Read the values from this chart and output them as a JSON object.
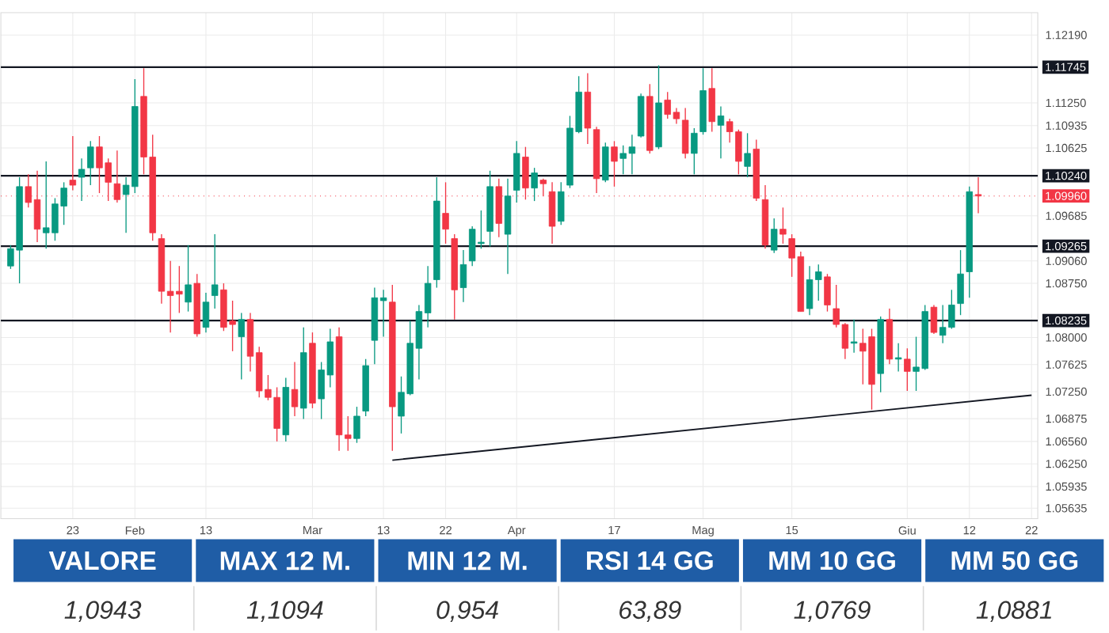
{
  "chart_data": [
    {
      "type": "candlestick",
      "categories": [
        null,
        null,
        null,
        null,
        null,
        null,
        null,
        "23",
        null,
        null,
        null,
        null,
        null,
        null,
        "Feb",
        null,
        null,
        null,
        null,
        null,
        null,
        null,
        "13",
        null,
        null,
        null,
        null,
        null,
        null,
        null,
        null,
        null,
        null,
        null,
        "Mar",
        null,
        null,
        null,
        null,
        null,
        null,
        null,
        "13",
        null,
        null,
        null,
        null,
        null,
        null,
        "22",
        null,
        null,
        null,
        null,
        null,
        null,
        null,
        "Apr",
        null,
        null,
        null,
        null,
        null,
        null,
        null,
        null,
        null,
        null,
        "17",
        null,
        null,
        null,
        null,
        null,
        null,
        null,
        null,
        null,
        "Mag",
        null,
        null,
        null,
        null,
        null,
        null,
        null,
        null,
        null,
        "15",
        null,
        null,
        null,
        null,
        null,
        null,
        null,
        null,
        null,
        null,
        null,
        null,
        "Giu",
        null,
        null,
        null,
        null,
        null,
        null,
        "12",
        null,
        null,
        null,
        null,
        null,
        null,
        "22"
      ],
      "ohlc": [
        [
          1.0899,
          1.0928,
          1.0895,
          1.0923
        ],
        [
          1.0921,
          1.1022,
          1.0875,
          1.1009
        ],
        [
          1.1009,
          1.1026,
          1.098,
          1.0987
        ],
        [
          1.0991,
          1.1031,
          1.0932,
          1.095
        ],
        [
          1.0945,
          1.1044,
          1.0923,
          1.0952
        ],
        [
          1.0945,
          1.0993,
          1.0934,
          1.0985
        ],
        [
          1.0982,
          1.1015,
          1.0956,
          1.1007
        ],
        [
          1.1018,
          1.1079,
          1.1004,
          1.1011
        ],
        [
          1.1022,
          1.1048,
          1.0989,
          1.1033
        ],
        [
          1.1035,
          1.1072,
          1.1011,
          1.1064
        ],
        [
          1.1064,
          1.1079,
          1.1,
          1.1035
        ],
        [
          1.1042,
          1.1048,
          1.0989,
          1.1015
        ],
        [
          1.1013,
          1.1059,
          1.0987,
          1.0991
        ],
        [
          1.0998,
          1.1022,
          1.0945,
          1.1011
        ],
        [
          1.1009,
          1.1158,
          1.1,
          1.112
        ],
        [
          1.1134,
          1.1173,
          1.1026,
          1.105
        ],
        [
          1.105,
          1.1081,
          1.0934,
          1.0945
        ],
        [
          1.0937,
          1.0943,
          1.0847,
          1.0864
        ],
        [
          1.0864,
          1.0906,
          1.0807,
          1.0858
        ],
        [
          1.0864,
          1.0899,
          1.0834,
          1.086
        ],
        [
          1.0849,
          1.0928,
          1.0836,
          1.0873
        ],
        [
          1.0875,
          1.0888,
          1.0801,
          1.0805
        ],
        [
          1.0814,
          1.0862,
          1.0807,
          1.0849
        ],
        [
          1.0858,
          1.0943,
          1.084,
          1.0873
        ],
        [
          1.0866,
          1.0875,
          1.0809,
          1.0814
        ],
        [
          1.0823,
          1.0851,
          1.0781,
          1.0818
        ],
        [
          1.0801,
          1.0834,
          1.0742,
          1.0825
        ],
        [
          1.0825,
          1.0834,
          1.0753,
          1.0774
        ],
        [
          1.0779,
          1.0787,
          1.0717,
          1.0726
        ],
        [
          1.0728,
          1.0748,
          1.0713,
          1.0717
        ],
        [
          1.0717,
          1.0731,
          1.0656,
          1.0674
        ],
        [
          1.0665,
          1.0744,
          1.0656,
          1.0731
        ],
        [
          1.0728,
          1.0766,
          1.0691,
          1.0704
        ],
        [
          1.0702,
          1.0814,
          1.0687,
          1.0779
        ],
        [
          1.0792,
          1.0807,
          1.0702,
          1.0709
        ],
        [
          1.0715,
          1.0766,
          1.0687,
          1.0755
        ],
        [
          1.0748,
          1.0812,
          1.0731,
          1.0794
        ],
        [
          1.0801,
          1.0814,
          1.0643,
          1.0665
        ],
        [
          1.0665,
          1.0691,
          1.0643,
          1.066
        ],
        [
          1.066,
          1.0704,
          1.0654,
          1.0691
        ],
        [
          1.0698,
          1.077,
          1.0691,
          1.0761
        ],
        [
          1.0796,
          1.0869,
          1.0763,
          1.0855
        ],
        [
          1.0851,
          1.0866,
          1.0801,
          1.0855
        ],
        [
          1.0849,
          1.0873,
          1.0643,
          1.0704
        ],
        [
          1.0691,
          1.0746,
          1.0667,
          1.0724
        ],
        [
          1.0722,
          1.0823,
          1.072,
          1.0792
        ],
        [
          1.0785,
          1.0845,
          1.0742,
          1.0836
        ],
        [
          1.0834,
          1.0899,
          1.0814,
          1.0875
        ],
        [
          1.088,
          1.1022,
          1.0869,
          1.0989
        ],
        [
          1.0972,
          1.1015,
          1.093,
          1.095
        ],
        [
          1.0937,
          1.0943,
          1.0825,
          1.0866
        ],
        [
          1.0869,
          1.0921,
          1.0849,
          1.0901
        ],
        [
          1.0906,
          1.0954,
          1.0899,
          1.095
        ],
        [
          1.093,
          1.0976,
          1.0923,
          1.0932
        ],
        [
          1.0947,
          1.1031,
          1.0926,
          1.1009
        ],
        [
          1.1009,
          1.102,
          1.0939,
          1.0958
        ],
        [
          1.0943,
          1.102,
          1.0888,
          1.0996
        ],
        [
          1.1004,
          1.1072,
          1.0987,
          1.1055
        ],
        [
          1.105,
          1.1064,
          1.0991,
          1.1007
        ],
        [
          1.1007,
          1.1035,
          1.0989,
          1.1028
        ],
        [
          1.1018,
          1.102,
          1.0996,
          1.1013
        ],
        [
          1.1002,
          1.1015,
          1.093,
          1.0954
        ],
        [
          1.0961,
          1.1015,
          1.0956,
          1.1002
        ],
        [
          1.1011,
          1.1107,
          1.1007,
          1.109
        ],
        [
          1.1085,
          1.1162,
          1.1083,
          1.114
        ],
        [
          1.114,
          1.1166,
          1.1068,
          1.109
        ],
        [
          1.1088,
          1.1092,
          1.1,
          1.102
        ],
        [
          1.1018,
          1.107,
          1.1015,
          1.1064
        ],
        [
          1.1064,
          1.1072,
          1.1009,
          1.1044
        ],
        [
          1.1048,
          1.1066,
          1.1026,
          1.1055
        ],
        [
          1.1055,
          1.1081,
          1.1026,
          1.1064
        ],
        [
          1.1079,
          1.1138,
          1.1077,
          1.1134
        ],
        [
          1.1134,
          1.1151,
          1.1055,
          1.1059
        ],
        [
          1.1064,
          1.1177,
          1.1061,
          1.1125
        ],
        [
          1.1129,
          1.114,
          1.1103,
          1.1109
        ],
        [
          1.1112,
          1.1118,
          1.1096,
          1.1103
        ],
        [
          1.1101,
          1.1118,
          1.1048,
          1.1055
        ],
        [
          1.1055,
          1.109,
          1.1026,
          1.1083
        ],
        [
          1.1085,
          1.1173,
          1.1081,
          1.1142
        ],
        [
          1.1145,
          1.1173,
          1.1085,
          1.1099
        ],
        [
          1.1094,
          1.112,
          1.1048,
          1.1107
        ],
        [
          1.1099,
          1.1103,
          1.107,
          1.1085
        ],
        [
          1.1085,
          1.1088,
          1.1026,
          1.1044
        ],
        [
          1.1037,
          1.1083,
          1.1022,
          1.1055
        ],
        [
          1.1061,
          1.1074,
          1.0989,
          1.0993
        ],
        [
          1.0991,
          1.1011,
          1.0923,
          1.0928
        ],
        [
          1.0921,
          1.0965,
          1.0917,
          1.095
        ],
        [
          1.095,
          1.098,
          1.093,
          1.0943
        ],
        [
          1.0937,
          1.0943,
          1.0884,
          1.091
        ],
        [
          1.0912,
          1.0919,
          1.0836,
          1.0836
        ],
        [
          1.084,
          1.0899,
          1.0831,
          1.088
        ],
        [
          1.088,
          1.0901,
          1.0851,
          1.0891
        ],
        [
          1.0884,
          1.0888,
          1.0836,
          1.0845
        ],
        [
          1.084,
          1.0873,
          1.0814,
          1.0818
        ],
        [
          1.0818,
          1.082,
          1.077,
          1.0785
        ],
        [
          1.0792,
          1.0825,
          1.0779,
          1.0794
        ],
        [
          1.0792,
          1.0812,
          1.0735,
          1.0781
        ],
        [
          1.0801,
          1.0812,
          1.07,
          1.0735
        ],
        [
          1.075,
          1.0829,
          1.0724,
          1.0825
        ],
        [
          1.0825,
          1.084,
          1.0763,
          1.077
        ],
        [
          1.077,
          1.0792,
          1.0753,
          1.0772
        ],
        [
          1.077,
          1.0785,
          1.0726,
          1.0753
        ],
        [
          1.0753,
          1.0801,
          1.0726,
          1.0759
        ],
        [
          1.0757,
          1.0845,
          1.0755,
          1.0836
        ],
        [
          1.0842,
          1.0845,
          1.0805,
          1.0807
        ],
        [
          1.0803,
          1.0845,
          1.0792,
          1.0814
        ],
        [
          1.0814,
          1.0866,
          1.0812,
          1.0845
        ],
        [
          1.0847,
          1.0921,
          1.0831,
          1.0888
        ],
        [
          1.0891,
          1.1009,
          1.0855,
          1.1002
        ],
        [
          1.0998,
          1.1022,
          1.0972,
          1.0996
        ],
        null,
        null,
        null,
        null,
        null,
        null
      ],
      "series": [
        {
          "type": "line",
          "color": "#131722",
          "values": [
            null,
            null,
            null,
            null,
            null,
            null,
            null,
            null,
            null,
            null,
            null,
            null,
            null,
            null,
            null,
            null,
            null,
            null,
            null,
            null,
            null,
            null,
            null,
            null,
            null,
            null,
            null,
            null,
            null,
            null,
            null,
            null,
            null,
            null,
            null,
            null,
            null,
            null,
            null,
            null,
            null,
            null,
            null,
            1.063,
            null,
            null,
            null,
            null,
            null,
            null,
            null,
            null,
            null,
            null,
            null,
            null,
            null,
            null,
            null,
            null,
            null,
            null,
            null,
            null,
            null,
            null,
            null,
            null,
            null,
            null,
            null,
            null,
            null,
            null,
            null,
            null,
            null,
            null,
            null,
            null,
            null,
            null,
            null,
            null,
            null,
            null,
            null,
            null,
            null,
            null,
            null,
            null,
            null,
            null,
            null,
            null,
            null,
            null,
            null,
            null,
            null,
            null,
            null,
            null,
            null,
            null,
            null,
            null,
            null,
            null,
            null,
            null,
            null,
            null,
            null,
            1.072
          ]
        }
      ],
      "ylim": [
        1.0549,
        1.125
      ],
      "yticks": [
        {
          "value": 1.1219,
          "label": "1.12190"
        },
        {
          "value": 1.1125,
          "label": "1.11250"
        },
        1.10935,
        1.10625,
        1.09685,
        {
          "value": 1.0906,
          "label": "1.09060"
        },
        {
          "value": 1.0875,
          "label": "1.08750"
        },
        {
          "value": 1.08,
          "label": "1.08000"
        },
        1.07625,
        {
          "value": 1.0725,
          "label": "1.07250"
        },
        1.06875,
        {
          "value": 1.0656,
          "label": "1.06560"
        },
        {
          "value": 1.0625,
          "label": "1.06250"
        },
        1.05935,
        1.05635
      ],
      "ref_lines": [
        {
          "axis": "y",
          "value": 1.11745,
          "label": "1.11745",
          "color": "#131722"
        },
        {
          "axis": "y",
          "value": 1.1024,
          "label": "1.10240",
          "color": "#131722"
        },
        {
          "axis": "y",
          "value": 1.0996,
          "label": "1.09960",
          "color": "#f23645",
          "line_style": "dotted"
        },
        {
          "axis": "y",
          "value": 1.09265,
          "label": "1.09265",
          "color": "#131722"
        },
        {
          "axis": "y",
          "value": 1.08235,
          "label": "1.08235",
          "color": "#131722"
        }
      ],
      "grid": true
    },
    {
      "type": "other",
      "color": "#1f5da6",
      "categories": [
        "VALORE",
        "MAX 12 M.",
        "MIN 12 M.",
        "RSI 14 GG",
        "MM 10 GG",
        "MM 50 GG"
      ],
      "annotations": [
        "1,0943",
        "1,1094",
        "0,954",
        "63,89",
        "1,0769",
        "1,0881"
      ]
    }
  ]
}
